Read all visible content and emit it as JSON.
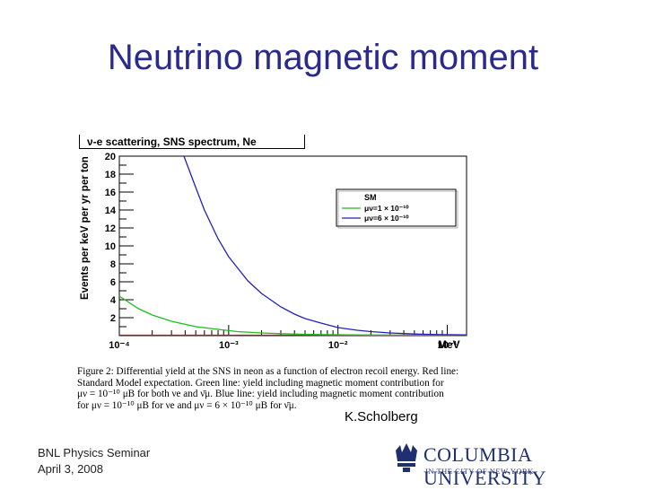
{
  "slide": {
    "title": "Neutrino magnetic moment",
    "credit": "K.Scholberg",
    "footer_line1": "BNL Physics Seminar",
    "footer_line2": "April 3, 2008",
    "logo_text": "COLUMBIA UNIVERSITY",
    "logo_subtext": "IN THE CITY OF NEW YORK"
  },
  "caption": {
    "line1": "Figure 2: Differential yield at the SNS in neon as a function of electron recoil energy. Red line:",
    "line2": "Standard Model expectation. Green line: yield including magnetic moment contribution for",
    "line3": "μν = 10⁻¹⁰ μB for both νe and ν̄μ. Blue line: yield including magnetic moment contribution",
    "line4": "for μν = 10⁻¹⁰ μB for νe and μν = 6 × 10⁻¹⁰ μB for ν̄μ."
  },
  "chart_data": {
    "type": "line",
    "title": "ν-e scattering, SNS spectrum, Ne",
    "xlabel": "MeV",
    "ylabel": "Events per keV per yr per ton",
    "x_scale": "log",
    "xlim": [
      0.0001,
      0.15
    ],
    "ylim": [
      0,
      20
    ],
    "x_tick_labels": [
      "10⁻⁴",
      "10⁻³",
      "10⁻²",
      "10⁻¹"
    ],
    "y_tick_labels": [
      "2",
      "4",
      "6",
      "8",
      "10",
      "12",
      "14",
      "16",
      "18",
      "20"
    ],
    "legend_position": "top-right",
    "legend": {
      "title": "SM",
      "entry1": "μν=1 × 10⁻¹⁰",
      "entry2": "μν=6 × 10⁻¹⁰"
    },
    "colors": {
      "sm": "#e00000",
      "green": "#22bb22",
      "blue": "#2222bb"
    },
    "series": [
      {
        "name": "SM",
        "x": [
          0.0001,
          0.15
        ],
        "y": [
          0.05,
          0.05
        ]
      },
      {
        "name": "μν=1 × 10⁻¹⁰",
        "x": [
          0.0001,
          0.00015,
          0.0002,
          0.0003,
          0.0005,
          0.0008,
          0.0012,
          0.002,
          0.003,
          0.005,
          0.008,
          0.012,
          0.02,
          0.04,
          0.08,
          0.15
        ],
        "y": [
          4.4,
          3.0,
          2.3,
          1.6,
          1.0,
          0.7,
          0.45,
          0.3,
          0.22,
          0.15,
          0.11,
          0.09,
          0.07,
          0.06,
          0.05,
          0.05
        ]
      },
      {
        "name": "μν=6 × 10⁻¹⁰",
        "x": [
          0.00039,
          0.0005,
          0.0006,
          0.0008,
          0.001,
          0.0015,
          0.002,
          0.003,
          0.004,
          0.005,
          0.007,
          0.01,
          0.015,
          0.02,
          0.03,
          0.05,
          0.08,
          0.15
        ],
        "y": [
          20,
          16.5,
          14,
          10.8,
          8.8,
          6.1,
          4.7,
          3.2,
          2.4,
          1.9,
          1.4,
          0.9,
          0.6,
          0.45,
          0.3,
          0.18,
          0.12,
          0.08
        ]
      }
    ]
  }
}
